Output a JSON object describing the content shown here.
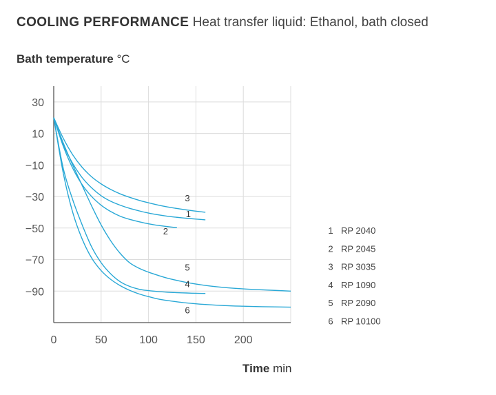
{
  "header": {
    "title": "COOLING PERFORMANCE",
    "subtitle": "Heat transfer liquid: Ethanol, bath closed"
  },
  "chart_data": {
    "type": "line",
    "ylabel": "Bath temperature",
    "yunit": "°C",
    "xlabel": "Time",
    "xunit": "min",
    "xlim": [
      0,
      250
    ],
    "ylim": [
      -110,
      40
    ],
    "xticks": [
      0,
      50,
      100,
      150,
      200
    ],
    "yticks": [
      30,
      10,
      -10,
      -30,
      -50,
      -70,
      -90
    ],
    "ytick_labels": [
      "30",
      "10",
      "−10",
      "−30",
      "−50",
      "−70",
      "−90"
    ],
    "grid": true,
    "line_color": "#29a8d6",
    "series": [
      {
        "name": "RP 2040",
        "label": "1",
        "x": [
          0,
          10,
          20,
          30,
          40,
          50,
          60,
          70,
          80,
          90,
          100,
          110,
          120,
          130,
          140,
          150,
          160
        ],
        "y": [
          20,
          3,
          -9,
          -18,
          -24.5,
          -29.5,
          -33,
          -35.5,
          -37.5,
          -39.1,
          -40.5,
          -41.6,
          -42.5,
          -43.2,
          -43.8,
          -44.3,
          -44.8
        ]
      },
      {
        "name": "RP 2045",
        "label": "2",
        "x": [
          0,
          10,
          20,
          30,
          40,
          50,
          60,
          70,
          80,
          90,
          100,
          110,
          120,
          130
        ],
        "y": [
          20,
          2,
          -12,
          -22.5,
          -30,
          -35.5,
          -39.5,
          -42.5,
          -44.5,
          -46,
          -47.3,
          -48.3,
          -49.1,
          -49.8
        ]
      },
      {
        "name": "RP 3035",
        "label": "3",
        "x": [
          0,
          10,
          20,
          30,
          40,
          50,
          60,
          70,
          80,
          90,
          100,
          110,
          120,
          130,
          140,
          150,
          160
        ],
        "y": [
          20,
          7,
          -3.5,
          -11.5,
          -17.5,
          -22,
          -25.5,
          -28.3,
          -30.5,
          -32.4,
          -34,
          -35.4,
          -36.6,
          -37.6,
          -38.5,
          -39.3,
          -40
        ]
      },
      {
        "name": "RP 1090",
        "label": "4",
        "x": [
          0,
          10,
          20,
          30,
          40,
          50,
          60,
          70,
          80,
          90,
          100,
          110,
          120,
          130,
          140,
          150,
          160
        ],
        "y": [
          20,
          -12,
          -32,
          -48,
          -62,
          -72,
          -79,
          -84,
          -87,
          -88.8,
          -89.7,
          -90.3,
          -90.7,
          -91,
          -91.2,
          -91.4,
          -91.5
        ]
      },
      {
        "name": "RP 2090",
        "label": "5",
        "x": [
          0,
          10,
          20,
          30,
          40,
          50,
          60,
          70,
          80,
          90,
          100,
          110,
          120,
          140,
          160,
          180,
          200,
          220,
          250
        ],
        "y": [
          20,
          4,
          -10,
          -23,
          -36,
          -48,
          -58,
          -66,
          -72,
          -75.5,
          -78,
          -80,
          -81.8,
          -84.5,
          -86.4,
          -87.7,
          -88.6,
          -89.2,
          -90
        ]
      },
      {
        "name": "RP 10100",
        "label": "6",
        "x": [
          0,
          10,
          20,
          30,
          40,
          50,
          60,
          70,
          80,
          90,
          100,
          110,
          120,
          140,
          160,
          180,
          200,
          220,
          250
        ],
        "y": [
          20,
          -15,
          -40,
          -57,
          -69,
          -77,
          -82.5,
          -86.5,
          -89.5,
          -91.8,
          -93.5,
          -95,
          -96,
          -97.5,
          -98.5,
          -99.2,
          -99.6,
          -99.9,
          -100.2
        ]
      }
    ],
    "curve_label_positions_data": [
      {
        "label": "1",
        "x": 142,
        "y": -43
      },
      {
        "label": "2",
        "x": 118,
        "y": -54
      },
      {
        "label": "3",
        "x": 141,
        "y": -33
      },
      {
        "label": "4",
        "x": 141,
        "y": -87.5
      },
      {
        "label": "5",
        "x": 141,
        "y": -77
      },
      {
        "label": "6",
        "x": 141,
        "y": -104
      }
    ],
    "legend": {
      "placement": "right",
      "entries": [
        {
          "num": "1",
          "name": "RP 2040"
        },
        {
          "num": "2",
          "name": "RP 2045"
        },
        {
          "num": "3",
          "name": "RP 3035"
        },
        {
          "num": "4",
          "name": "RP 1090"
        },
        {
          "num": "5",
          "name": "RP 2090"
        },
        {
          "num": "6",
          "name": "RP 10100"
        }
      ]
    }
  }
}
